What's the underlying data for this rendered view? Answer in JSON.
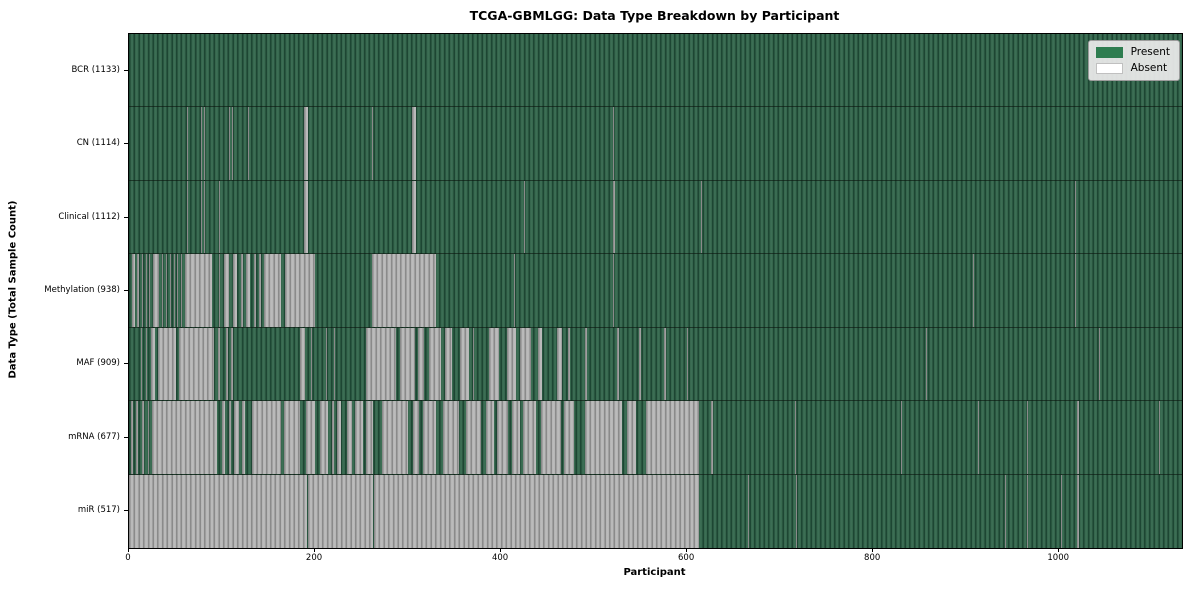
{
  "chart_data": {
    "type": "heatmap",
    "title": "TCGA-GBMLGG: Data Type Breakdown by Participant",
    "xlabel": "Participant",
    "ylabel": "Data Type (Total Sample Count)",
    "n_participants": 1132,
    "x_ticks": [
      0,
      200,
      400,
      600,
      800,
      1000
    ],
    "legend": {
      "position": "upper right",
      "items": [
        {
          "label": "Present",
          "color": "#2e7d50"
        },
        {
          "label": "Absent",
          "color": "#ffffff"
        }
      ]
    },
    "colors": {
      "present_edge": "#1d4633",
      "present_mid": "#336349",
      "present_hi": "#3e7057",
      "absent_edge": "#8a8a8a",
      "absent_mid": "#b2b2b2",
      "absent_hi": "#bdbdbd",
      "legend_present": "#2e7d50",
      "legend_absent": "#ffffff"
    },
    "rows": [
      {
        "key": "bcr",
        "label": "BCR (1133)",
        "total_samples": 1133,
        "absent_intervals": []
      },
      {
        "key": "cn",
        "label": "CN (1114)",
        "total_samples": 1114,
        "absent_intervals": [
          [
            62,
            63
          ],
          [
            77,
            78
          ],
          [
            81,
            82
          ],
          [
            108,
            109
          ],
          [
            111,
            112
          ],
          [
            128,
            129
          ],
          [
            188,
            192
          ],
          [
            261,
            262
          ],
          [
            304,
            308
          ],
          [
            520,
            521
          ],
          [
            938,
            939
          ]
        ]
      },
      {
        "key": "clinical",
        "label": "Clinical (1112)",
        "total_samples": 1112,
        "absent_intervals": [
          [
            62,
            63
          ],
          [
            77,
            79
          ],
          [
            81,
            82
          ],
          [
            97,
            98
          ],
          [
            188,
            192
          ],
          [
            304,
            308
          ],
          [
            425,
            426
          ],
          [
            465,
            466
          ],
          [
            520,
            522
          ],
          [
            615,
            616
          ],
          [
            1017,
            1018
          ]
        ]
      },
      {
        "key": "methylation",
        "label": "Methylation (938)",
        "total_samples": 938,
        "absent_intervals": [
          [
            3,
            6
          ],
          [
            9,
            11
          ],
          [
            14,
            15
          ],
          [
            18,
            19
          ],
          [
            22,
            23
          ],
          [
            26,
            32
          ],
          [
            35,
            37
          ],
          [
            40,
            41
          ],
          [
            44,
            45
          ],
          [
            48,
            49
          ],
          [
            52,
            53
          ],
          [
            56,
            57
          ],
          [
            60,
            89
          ],
          [
            97,
            98
          ],
          [
            102,
            107
          ],
          [
            112,
            116
          ],
          [
            120,
            123
          ],
          [
            126,
            130
          ],
          [
            134,
            137
          ],
          [
            140,
            142
          ],
          [
            145,
            163
          ],
          [
            168,
            200
          ],
          [
            261,
            330
          ],
          [
            414,
            415
          ],
          [
            520,
            521
          ],
          [
            907,
            908
          ],
          [
            1017,
            1018
          ]
        ]
      },
      {
        "key": "maf",
        "label": "MAF (909)",
        "total_samples": 909,
        "absent_intervals": [
          [
            7,
            8
          ],
          [
            13,
            14
          ],
          [
            18,
            19
          ],
          [
            24,
            28
          ],
          [
            31,
            51
          ],
          [
            54,
            91
          ],
          [
            96,
            98
          ],
          [
            104,
            106
          ],
          [
            110,
            112
          ],
          [
            184,
            189
          ],
          [
            196,
            197
          ],
          [
            207,
            208
          ],
          [
            212,
            213
          ],
          [
            220,
            221
          ],
          [
            255,
            287
          ],
          [
            291,
            307
          ],
          [
            311,
            317
          ],
          [
            322,
            335
          ],
          [
            340,
            347
          ],
          [
            356,
            366
          ],
          [
            370,
            371
          ],
          [
            387,
            398
          ],
          [
            406,
            416
          ],
          [
            420,
            432
          ],
          [
            440,
            444
          ],
          [
            460,
            465
          ],
          [
            472,
            474
          ],
          [
            490,
            492
          ],
          [
            525,
            527
          ],
          [
            548,
            550
          ],
          [
            575,
            577
          ],
          [
            600,
            601
          ],
          [
            857,
            858
          ],
          [
            1043,
            1044
          ]
        ]
      },
      {
        "key": "mrna",
        "label": "mRNA (677)",
        "total_samples": 677,
        "absent_intervals": [
          [
            2,
            4
          ],
          [
            8,
            10
          ],
          [
            14,
            16
          ],
          [
            20,
            22
          ],
          [
            25,
            95
          ],
          [
            100,
            103
          ],
          [
            107,
            110
          ],
          [
            113,
            118
          ],
          [
            121,
            125
          ],
          [
            132,
            163
          ],
          [
            167,
            184
          ],
          [
            190,
            200
          ],
          [
            205,
            214
          ],
          [
            218,
            220
          ],
          [
            224,
            228
          ],
          [
            234,
            240
          ],
          [
            243,
            252
          ],
          [
            255,
            262
          ],
          [
            272,
            300
          ],
          [
            305,
            312
          ],
          [
            316,
            330
          ],
          [
            338,
            355
          ],
          [
            362,
            378
          ],
          [
            384,
            392
          ],
          [
            396,
            407
          ],
          [
            412,
            420
          ],
          [
            424,
            438
          ],
          [
            443,
            464
          ],
          [
            468,
            478
          ],
          [
            490,
            530
          ],
          [
            535,
            545
          ],
          [
            556,
            613
          ],
          [
            626,
            628
          ],
          [
            716,
            717
          ],
          [
            830,
            831
          ],
          [
            913,
            914
          ],
          [
            965,
            966
          ],
          [
            1019,
            1021
          ],
          [
            1107,
            1108
          ]
        ]
      },
      {
        "key": "mir",
        "label": "miR (517)",
        "total_samples": 517,
        "absent_intervals": [
          [
            0,
            191
          ],
          [
            192,
            262
          ],
          [
            263,
            613
          ],
          [
            665,
            666
          ],
          [
            717,
            718
          ],
          [
            942,
            943
          ],
          [
            965,
            966
          ],
          [
            1002,
            1003
          ],
          [
            1019,
            1021
          ]
        ]
      }
    ]
  }
}
